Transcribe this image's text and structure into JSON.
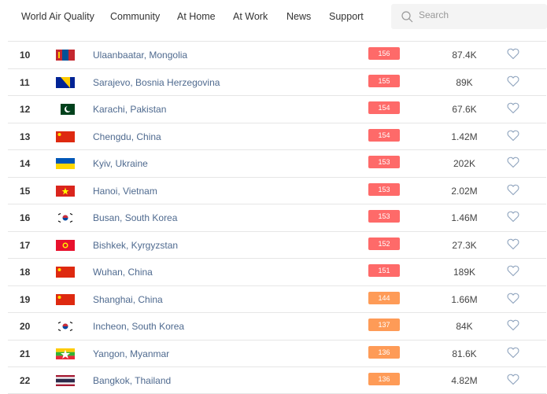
{
  "nav": {
    "items": [
      "World Air Quality",
      "Community",
      "At Home",
      "At Work",
      "News",
      "Support"
    ],
    "search_placeholder": "Search"
  },
  "colors": {
    "unhealthy": "#fe6a69",
    "sensitive": "#fe9b57",
    "city_link": "#4f6a8f"
  },
  "rows": [
    {
      "rank": "10",
      "flag": "mongolia",
      "city": "Ulaanbaatar, Mongolia",
      "aqi": "156",
      "level": "unhealthy",
      "followers": "87.4K"
    },
    {
      "rank": "11",
      "flag": "bosnia",
      "city": "Sarajevo, Bosnia Herzegovina",
      "aqi": "155",
      "level": "unhealthy",
      "followers": "89K"
    },
    {
      "rank": "12",
      "flag": "pakistan",
      "city": "Karachi, Pakistan",
      "aqi": "154",
      "level": "unhealthy",
      "followers": "67.6K"
    },
    {
      "rank": "13",
      "flag": "china",
      "city": "Chengdu, China",
      "aqi": "154",
      "level": "unhealthy",
      "followers": "1.42M"
    },
    {
      "rank": "14",
      "flag": "ukraine",
      "city": "Kyiv, Ukraine",
      "aqi": "153",
      "level": "unhealthy",
      "followers": "202K"
    },
    {
      "rank": "15",
      "flag": "vietnam",
      "city": "Hanoi, Vietnam",
      "aqi": "153",
      "level": "unhealthy",
      "followers": "2.02M"
    },
    {
      "rank": "16",
      "flag": "south-korea",
      "city": "Busan, South Korea",
      "aqi": "153",
      "level": "unhealthy",
      "followers": "1.46M"
    },
    {
      "rank": "17",
      "flag": "kyrgyzstan",
      "city": "Bishkek, Kyrgyzstan",
      "aqi": "152",
      "level": "unhealthy",
      "followers": "27.3K"
    },
    {
      "rank": "18",
      "flag": "china",
      "city": "Wuhan, China",
      "aqi": "151",
      "level": "unhealthy",
      "followers": "189K"
    },
    {
      "rank": "19",
      "flag": "china",
      "city": "Shanghai, China",
      "aqi": "144",
      "level": "sensitive",
      "followers": "1.66M"
    },
    {
      "rank": "20",
      "flag": "south-korea",
      "city": "Incheon, South Korea",
      "aqi": "137",
      "level": "sensitive",
      "followers": "84K"
    },
    {
      "rank": "21",
      "flag": "myanmar",
      "city": "Yangon, Myanmar",
      "aqi": "136",
      "level": "sensitive",
      "followers": "81.6K"
    },
    {
      "rank": "22",
      "flag": "thailand",
      "city": "Bangkok, Thailand",
      "aqi": "136",
      "level": "sensitive",
      "followers": "4.82M"
    }
  ]
}
